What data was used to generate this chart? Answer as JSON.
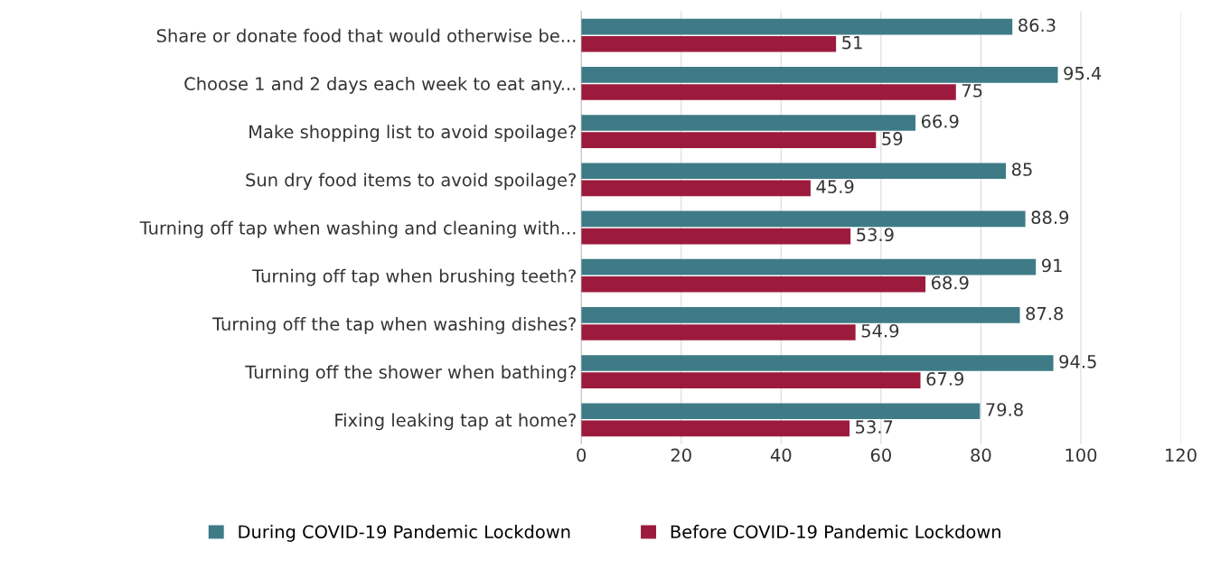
{
  "chart_data": {
    "type": "bar",
    "orientation": "horizontal",
    "categories": [
      "Share or donate food that would otherwise be...",
      "Choose 1 and 2 days each week to eat any...",
      "Make shopping list to avoid spoilage?",
      "Sun dry food items to avoid spoilage?",
      "Turning off tap when washing and cleaning with...",
      "Turning off tap when brushing teeth?",
      "Turning off the tap when washing dishes?",
      "Turning off the shower when bathing?",
      "Fixing leaking tap at home?"
    ],
    "series": [
      {
        "name": "During COVID-19 Pandemic Lockdown",
        "color": "#3e7b87",
        "values": [
          86.3,
          95.4,
          66.9,
          85,
          88.9,
          91,
          87.8,
          94.5,
          79.8
        ]
      },
      {
        "name": "Before COVID-19 Pandemic Lockdown",
        "color": "#9c1b3d",
        "values": [
          51,
          75,
          59,
          45.9,
          53.9,
          68.9,
          54.9,
          67.9,
          53.7
        ]
      }
    ],
    "xlim": [
      0,
      120
    ],
    "xticks": [
      0,
      20,
      40,
      60,
      80,
      100,
      120
    ],
    "grid": "x",
    "legend": "bottom",
    "data_labels": true
  }
}
